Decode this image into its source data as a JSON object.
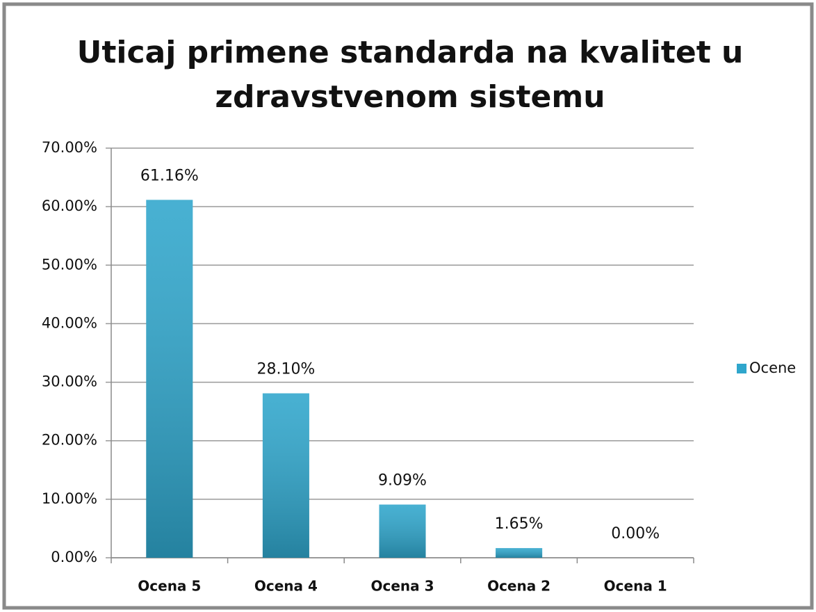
{
  "chart_data": {
    "type": "bar",
    "title": [
      "Uticaj primene standarda na kvalitet u",
      "zdravstvenom sistemu"
    ],
    "categories": [
      "Ocena 5",
      "Ocena 4",
      "Ocena 3",
      "Ocena 2",
      "Ocena 1"
    ],
    "series": [
      {
        "name": "Ocene",
        "color": "#2fa6cc",
        "values": [
          61.16,
          28.1,
          9.09,
          1.65,
          0
        ],
        "value_labels": [
          "61.16%",
          "28.10%",
          "9.09%",
          "1.65%",
          "0.00%"
        ]
      }
    ],
    "ylim": [
      0,
      70
    ],
    "yticks": [
      {
        "value": 0,
        "label": "0.00%"
      },
      {
        "value": 10,
        "label": "10.00%"
      },
      {
        "value": 20,
        "label": "20.00%"
      },
      {
        "value": 30,
        "label": "30.00%"
      },
      {
        "value": 40,
        "label": "40.00%"
      },
      {
        "value": 50,
        "label": "50.00%"
      },
      {
        "value": 60,
        "label": "60.00%"
      },
      {
        "value": 70,
        "label": "70.00%"
      }
    ],
    "grid": true,
    "legend": "right"
  }
}
